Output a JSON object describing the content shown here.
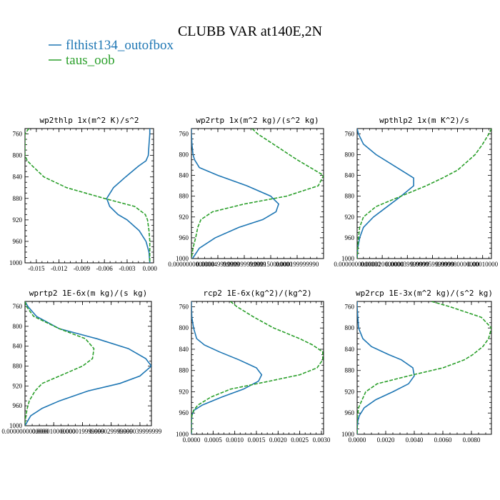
{
  "title": "CLUBB VAR at140E,2N",
  "colors": {
    "series1": "#1f77b4",
    "series2": "#2ca02c"
  },
  "legend": [
    {
      "label": "flthist134_outofbox",
      "color": "#1f77b4",
      "dash": "solid"
    },
    {
      "label": "taus_oob",
      "color": "#2ca02c",
      "dash": "dashed"
    }
  ],
  "chart_data": [
    {
      "type": "line",
      "title": "wp2thlp  1x(m^2 K)/s^2",
      "xlim": [
        -0.0165,
        0.0005
      ],
      "ylim": [
        1000,
        750
      ],
      "yticks": [
        "760",
        "800",
        "840",
        "880",
        "920",
        "960",
        "1000"
      ],
      "yticks_num": [
        760,
        800,
        840,
        880,
        920,
        960,
        1000
      ],
      "xticks": [
        "-0.015",
        "-0.012",
        "-0.009",
        "-0.006",
        "-0.003",
        "0.000"
      ],
      "xticks_num": [
        -0.015,
        -0.012,
        -0.009,
        -0.006,
        -0.003,
        0.0
      ],
      "y": [
        750,
        760,
        780,
        800,
        810,
        820,
        840,
        860,
        880,
        895,
        910,
        920,
        940,
        960,
        980,
        1000
      ],
      "series": [
        {
          "name": "flthist134_outofbox",
          "values": [
            0,
            0,
            -0.0001,
            -0.0002,
            -0.0005,
            -0.0015,
            -0.0032,
            -0.0048,
            -0.0057,
            -0.0053,
            -0.0042,
            -0.003,
            -0.0014,
            -0.0005,
            -0.0001,
            0
          ]
        },
        {
          "name": "taus_oob",
          "values": [
            -0.016,
            -0.0165,
            -0.0165,
            -0.0165,
            -0.0162,
            -0.0155,
            -0.014,
            -0.011,
            -0.006,
            -0.002,
            -0.0006,
            -0.0003,
            -0.0001,
            0,
            0,
            0
          ]
        }
      ]
    },
    {
      "type": "line",
      "title": "wp2rtp  1x(m^2 kg)/(s^2 kg)",
      "xlim": [
        0,
        0.00025
      ],
      "ylim": [
        1000,
        750
      ],
      "yticks": [
        "760",
        "800",
        "840",
        "880",
        "920",
        "960",
        "1000"
      ],
      "yticks_num": [
        760,
        800,
        840,
        880,
        920,
        960,
        1000
      ],
      "xticks": [
        "0.0000000000000",
        "0.000049999999",
        "0.000099999999",
        "0.000150000000",
        "0.000199999990"
      ],
      "xticks_num": [
        0,
        5e-05,
        0.0001,
        0.00015,
        0.0002
      ],
      "y": [
        750,
        760,
        780,
        800,
        810,
        825,
        840,
        860,
        880,
        895,
        910,
        925,
        940,
        960,
        980,
        1000
      ],
      "series": [
        {
          "name": "flthist134_outofbox",
          "values": [
            0,
            0,
            1e-06,
            3e-06,
            6e-06,
            1.5e-05,
            5e-05,
            0.000105,
            0.00015,
            0.000165,
            0.00016,
            0.000135,
            9e-05,
            4.5e-05,
            1.5e-05,
            2e-06
          ]
        },
        {
          "name": "taus_oob",
          "values": [
            0.000115,
            0.000125,
            0.000155,
            0.000185,
            0.0002,
            0.000225,
            0.00025,
            0.00024,
            0.00018,
            0.0001,
            4e-05,
            1.8e-05,
            1.2e-05,
            8e-06,
            3e-06,
            0
          ]
        }
      ]
    },
    {
      "type": "line",
      "title": "wpthlp2  1x(m K^2)/s",
      "xlim": [
        0,
        0.000107
      ],
      "ylim": [
        1000,
        750
      ],
      "yticks": [
        "760",
        "800",
        "840",
        "880",
        "920",
        "960",
        "1000"
      ],
      "yticks_num": [
        760,
        800,
        840,
        880,
        920,
        960,
        1000
      ],
      "xticks": [
        "0.0000000000000",
        "0.000020000000",
        "0.000039999999",
        "0.000059999999",
        "0.000080000000",
        "0.00010000"
      ],
      "xticks_num": [
        0,
        2e-05,
        4e-05,
        6e-05,
        8e-05,
        0.0001
      ],
      "y": [
        750,
        760,
        780,
        800,
        830,
        845,
        860,
        880,
        900,
        920,
        940,
        960,
        980,
        1000
      ],
      "series": [
        {
          "name": "flthist134_outofbox",
          "values": [
            0,
            1e-06,
            5e-06,
            1.5e-05,
            3.5e-05,
            4.5e-05,
            4.5e-05,
            3.5e-05,
            2.4e-05,
            1.3e-05,
            5e-06,
            2e-06,
            5e-07,
            0
          ]
        },
        {
          "name": "taus_oob",
          "values": [
            0.000107,
            0.000105,
            0.0001,
            9.4e-05,
            8e-05,
            6.8e-05,
            5.5e-05,
            3.5e-05,
            1.5e-05,
            5e-06,
            2e-06,
            1e-06,
            5e-07,
            0
          ]
        }
      ]
    },
    {
      "type": "line",
      "title": "wprtp2  1E-6x(m kg)/(s kg)",
      "xlim": [
        0,
        4.4e-05
      ],
      "ylim": [
        1000,
        750
      ],
      "yticks": [
        "760",
        "800",
        "840",
        "880",
        "920",
        "960",
        "1000"
      ],
      "yticks_num": [
        760,
        800,
        840,
        880,
        920,
        960,
        1000
      ],
      "xticks": [
        "0.0000000000000",
        "0.000010000000",
        "0.000019999999",
        "0.000029999999",
        "0.000039999999"
      ],
      "xticks_num": [
        0,
        1e-05,
        2e-05,
        3e-05,
        4e-05
      ],
      "y": [
        750,
        760,
        780,
        805,
        825,
        845,
        865,
        880,
        900,
        915,
        930,
        950,
        965,
        980,
        995,
        1000
      ],
      "series": [
        {
          "name": "flthist134_outofbox",
          "values": [
            0,
            1e-06,
            4e-06,
            1.2e-05,
            2.5e-05,
            3.6e-05,
            4.2e-05,
            4.4e-05,
            4e-05,
            3.3e-05,
            2.2e-05,
            1.2e-05,
            6e-06,
            2e-06,
            5e-07,
            0
          ]
        },
        {
          "name": "taus_oob",
          "values": [
            0,
            5e-07,
            3e-06,
            1.2e-05,
            2.1e-05,
            2.4e-05,
            2.35e-05,
            2e-05,
            1.2e-05,
            6e-06,
            3.5e-06,
            1.5e-06,
            8e-07,
            3e-07,
            0,
            0
          ]
        }
      ]
    },
    {
      "type": "line",
      "title": "rcp2  1E-6x(kg^2)/(kg^2)",
      "xlim": [
        0,
        0.00305
      ],
      "ylim": [
        1000,
        750
      ],
      "yticks": [
        "760",
        "800",
        "840",
        "880",
        "920",
        "960",
        "1000"
      ],
      "yticks_num": [
        760,
        800,
        840,
        880,
        920,
        960,
        1000
      ],
      "xticks": [
        "0.0000",
        "0.0005",
        "0.0010",
        "0.0015",
        "0.0020",
        "0.0025",
        "0.0030"
      ],
      "xticks_num": [
        0,
        0.0005,
        0.001,
        0.0015,
        0.002,
        0.0025,
        0.003
      ],
      "y": [
        750,
        760,
        780,
        800,
        820,
        832,
        845,
        860,
        875,
        888,
        900,
        915,
        930,
        945,
        955,
        965,
        975,
        990,
        1000
      ],
      "series": [
        {
          "name": "flthist134_outofbox",
          "values": [
            0,
            0,
            1e-05,
            5e-05,
            0.00012,
            0.0003,
            0.00065,
            0.0011,
            0.0015,
            0.00162,
            0.00155,
            0.0012,
            0.0007,
            0.00025,
            6e-05,
            1e-05,
            0,
            0,
            0
          ]
        },
        {
          "name": "taus_oob",
          "values": [
            0.0009,
            0.00105,
            0.00145,
            0.0019,
            0.0025,
            0.0028,
            0.00303,
            0.00303,
            0.0029,
            0.0025,
            0.0018,
            0.0009,
            0.00045,
            0.00015,
            5e-05,
            1e-05,
            0,
            0,
            0
          ]
        }
      ]
    },
    {
      "type": "line",
      "title": "wp2rcp  1E-3x(m^2 kg)/(s^2 kg)",
      "xlim": [
        0,
        0.0094
      ],
      "ylim": [
        1000,
        750
      ],
      "yticks": [
        "760",
        "800",
        "840",
        "880",
        "920",
        "960",
        "1000"
      ],
      "yticks_num": [
        760,
        800,
        840,
        880,
        920,
        960,
        1000
      ],
      "xticks": [
        "0.0000",
        "0.0020",
        "0.0040",
        "0.0060",
        "0.0080"
      ],
      "xticks_num": [
        0,
        0.002,
        0.004,
        0.006,
        0.008
      ],
      "y": [
        750,
        760,
        780,
        800,
        820,
        835,
        850,
        860,
        875,
        890,
        905,
        920,
        935,
        950,
        965,
        975,
        990,
        1000
      ],
      "series": [
        {
          "name": "flthist134_outofbox",
          "values": [
            0,
            0,
            5e-05,
            0.0001,
            0.0004,
            0.001,
            0.0022,
            0.0031,
            0.0039,
            0.004,
            0.0036,
            0.0025,
            0.0013,
            0.0005,
            0.00015,
            5e-05,
            0,
            0
          ]
        },
        {
          "name": "taus_oob",
          "values": [
            0.0052,
            0.0065,
            0.0087,
            0.0094,
            0.0092,
            0.0088,
            0.0081,
            0.0075,
            0.006,
            0.0036,
            0.0014,
            0.0006,
            0.00035,
            0.0001,
            3e-05,
            0,
            0,
            0
          ]
        }
      ]
    }
  ]
}
